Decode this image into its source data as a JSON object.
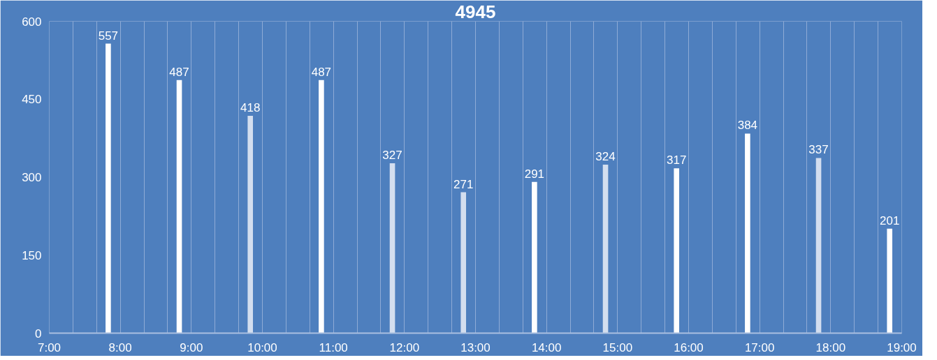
{
  "chart_data": {
    "type": "bar",
    "title": "4945",
    "series": [
      {
        "color": "#ffffff",
        "x": [
          7.83,
          8.83,
          10.83,
          13.83,
          15.83,
          16.83,
          18.83
        ],
        "values": [
          557,
          487,
          487,
          291,
          317,
          384,
          201
        ]
      },
      {
        "color": "#d3deef",
        "x": [
          9.83,
          11.83,
          12.83,
          14.83,
          17.83
        ],
        "values": [
          418,
          327,
          271,
          324,
          337
        ]
      }
    ],
    "xlim": [
      7,
      19
    ],
    "xticks": [
      {
        "value": 7,
        "label": "7:00"
      },
      {
        "value": 7.333,
        "label": null
      },
      {
        "value": 7.667,
        "label": null
      },
      {
        "value": 8,
        "label": "8:00"
      },
      {
        "value": 8.333,
        "label": null
      },
      {
        "value": 8.667,
        "label": null
      },
      {
        "value": 9,
        "label": "9:00"
      },
      {
        "value": 9.333,
        "label": null
      },
      {
        "value": 9.667,
        "label": null
      },
      {
        "value": 10,
        "label": "10:00"
      },
      {
        "value": 10.333,
        "label": null
      },
      {
        "value": 10.667,
        "label": null
      },
      {
        "value": 11,
        "label": "11:00"
      },
      {
        "value": 11.333,
        "label": null
      },
      {
        "value": 11.667,
        "label": null
      },
      {
        "value": 12,
        "label": "12:00"
      },
      {
        "value": 12.333,
        "label": null
      },
      {
        "value": 12.667,
        "label": null
      },
      {
        "value": 13,
        "label": "13:00"
      },
      {
        "value": 13.333,
        "label": null
      },
      {
        "value": 13.667,
        "label": null
      },
      {
        "value": 14,
        "label": "14:00"
      },
      {
        "value": 14.333,
        "label": null
      },
      {
        "value": 14.667,
        "label": null
      },
      {
        "value": 15,
        "label": "15:00"
      },
      {
        "value": 15.333,
        "label": null
      },
      {
        "value": 15.667,
        "label": null
      },
      {
        "value": 16,
        "label": "16:00"
      },
      {
        "value": 16.333,
        "label": null
      },
      {
        "value": 16.667,
        "label": null
      },
      {
        "value": 17,
        "label": "17:00"
      },
      {
        "value": 17.333,
        "label": null
      },
      {
        "value": 17.667,
        "label": null
      },
      {
        "value": 18,
        "label": "18:00"
      },
      {
        "value": 18.333,
        "label": null
      },
      {
        "value": 18.667,
        "label": null
      },
      {
        "value": 19,
        "label": "19:00"
      }
    ],
    "ylim": [
      0,
      600
    ],
    "yticks": [
      0,
      150,
      300,
      450,
      600
    ],
    "grid": "x",
    "data_labels": true
  }
}
